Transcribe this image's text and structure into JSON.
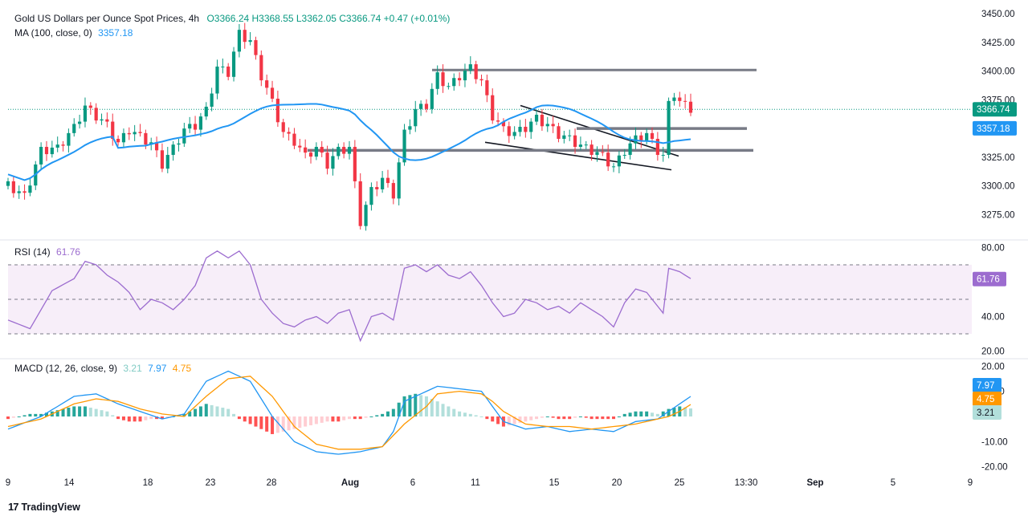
{
  "header": {
    "symbol": "Gold US Dollars per Ounce Spot Prices, 4h",
    "ohlc": "O3366.24  H3368.55  L3362.05  C3366.74  +0.47 (+0.01%)",
    "ma_label": "MA (100, close, 0)",
    "ma_value": "3357.18"
  },
  "rsi_header": {
    "label": "RSI (14)",
    "value": "61.76"
  },
  "macd_header": {
    "label": "MACD (12, 26, close, 9)",
    "hist": "3.21",
    "macd": "7.97",
    "signal": "4.75"
  },
  "footer": {
    "brand": "TradingView"
  },
  "colors": {
    "up": "#089981",
    "down": "#f23645",
    "ma": "#2196f3",
    "rsi": "#9c6ccf",
    "macd_line": "#2196f3",
    "signal_line": "#ff9800",
    "hist_up_strong": "#26a69a",
    "hist_up_weak": "#b2dfdb",
    "hist_down_strong": "#ff5252",
    "hist_down_weak": "#ffcdd2"
  },
  "chart_data": [
    {
      "type": "candlestick",
      "title": "Gold US Dollars per Ounce Spot Prices, 4h",
      "x_tick_labels": [
        "9",
        "14",
        "18",
        "23",
        "28",
        "Aug",
        "6",
        "11",
        "15",
        "20",
        "25",
        "13:30",
        "Sep",
        "5",
        "9"
      ],
      "ylim": [
        3255,
        3455
      ],
      "y_ticks": [
        "3450.00",
        "3425.00",
        "3400.00",
        "3375.00",
        "3350.00",
        "3325.00",
        "3300.00",
        "3275.00"
      ],
      "last_price": "3366.74",
      "ma_last": "3357.18",
      "close_path": [
        [
          0,
          3300
        ],
        [
          3,
          3290
        ],
        [
          6,
          3330
        ],
        [
          9,
          3332
        ],
        [
          12,
          3350
        ],
        [
          14,
          3368
        ],
        [
          16,
          3360
        ],
        [
          18,
          3352
        ],
        [
          20,
          3336
        ],
        [
          22,
          3348
        ],
        [
          24,
          3342
        ],
        [
          26,
          3336
        ],
        [
          28,
          3318
        ],
        [
          30,
          3332
        ],
        [
          32,
          3348
        ],
        [
          34,
          3352
        ],
        [
          36,
          3365
        ],
        [
          38,
          3402
        ],
        [
          40,
          3398
        ],
        [
          42,
          3432
        ],
        [
          44,
          3425
        ],
        [
          46,
          3395
        ],
        [
          48,
          3372
        ],
        [
          50,
          3345
        ],
        [
          52,
          3338
        ],
        [
          54,
          3325
        ],
        [
          56,
          3332
        ],
        [
          58,
          3318
        ],
        [
          60,
          3330
        ],
        [
          62,
          3332
        ],
        [
          64,
          3268
        ],
        [
          66,
          3295
        ],
        [
          68,
          3305
        ],
        [
          70,
          3292
        ],
        [
          72,
          3345
        ],
        [
          74,
          3365
        ],
        [
          76,
          3370
        ],
        [
          78,
          3395
        ],
        [
          80,
          3385
        ],
        [
          82,
          3395
        ],
        [
          84,
          3402
        ],
        [
          86,
          3390
        ],
        [
          88,
          3360
        ],
        [
          90,
          3348
        ],
        [
          92,
          3345
        ],
        [
          94,
          3350
        ],
        [
          96,
          3358
        ],
        [
          98,
          3352
        ],
        [
          100,
          3344
        ],
        [
          102,
          3340
        ],
        [
          104,
          3334
        ],
        [
          106,
          3330
        ],
        [
          108,
          3325
        ],
        [
          110,
          3315
        ],
        [
          112,
          3330
        ],
        [
          114,
          3340
        ],
        [
          116,
          3344
        ],
        [
          118,
          3330
        ],
        [
          119,
          3325
        ],
        [
          120,
          3370
        ],
        [
          121,
          3380
        ],
        [
          122,
          3372
        ],
        [
          124,
          3366.74
        ]
      ],
      "trendlines": [
        {
          "label": "resistance",
          "x": [
            110,
            187
          ],
          "y": [
            3401,
            3401
          ]
        },
        {
          "label": "wedge-top",
          "x": [
            134,
            172
          ],
          "y": [
            3370,
            3326
          ]
        },
        {
          "label": "wedge-bottom",
          "x": [
            126,
            172
          ],
          "y": [
            3338,
            3314
          ]
        },
        {
          "label": "level-3350",
          "x": [
            150,
            189
          ],
          "y": [
            3350,
            3350
          ]
        },
        {
          "label": "level-3330",
          "x": [
            80,
            190
          ],
          "y": [
            3331,
            3331
          ]
        }
      ]
    },
    {
      "type": "line",
      "title": "RSI (14)",
      "ylim": [
        17,
        83
      ],
      "y_ticks": [
        "80.00",
        "60.00",
        "40.00",
        "20.00"
      ],
      "band": [
        30,
        70
      ],
      "midline": 50,
      "last": "61.76",
      "values_path": [
        [
          0,
          38
        ],
        [
          4,
          33
        ],
        [
          8,
          55
        ],
        [
          12,
          62
        ],
        [
          14,
          72
        ],
        [
          16,
          70
        ],
        [
          18,
          64
        ],
        [
          20,
          60
        ],
        [
          22,
          54
        ],
        [
          24,
          44
        ],
        [
          26,
          50
        ],
        [
          28,
          48
        ],
        [
          30,
          44
        ],
        [
          32,
          50
        ],
        [
          34,
          58
        ],
        [
          36,
          74
        ],
        [
          38,
          78
        ],
        [
          40,
          74
        ],
        [
          42,
          78
        ],
        [
          44,
          70
        ],
        [
          46,
          50
        ],
        [
          48,
          42
        ],
        [
          50,
          36
        ],
        [
          52,
          34
        ],
        [
          54,
          38
        ],
        [
          56,
          40
        ],
        [
          58,
          36
        ],
        [
          60,
          42
        ],
        [
          62,
          44
        ],
        [
          64,
          26
        ],
        [
          66,
          40
        ],
        [
          68,
          42
        ],
        [
          70,
          38
        ],
        [
          72,
          68
        ],
        [
          74,
          70
        ],
        [
          76,
          66
        ],
        [
          78,
          70
        ],
        [
          80,
          64
        ],
        [
          82,
          62
        ],
        [
          84,
          66
        ],
        [
          86,
          58
        ],
        [
          88,
          48
        ],
        [
          90,
          40
        ],
        [
          92,
          42
        ],
        [
          94,
          50
        ],
        [
          96,
          48
        ],
        [
          98,
          44
        ],
        [
          100,
          46
        ],
        [
          102,
          42
        ],
        [
          104,
          48
        ],
        [
          106,
          44
        ],
        [
          108,
          40
        ],
        [
          110,
          34
        ],
        [
          112,
          48
        ],
        [
          114,
          56
        ],
        [
          116,
          54
        ],
        [
          118,
          46
        ],
        [
          119,
          42
        ],
        [
          120,
          68
        ],
        [
          122,
          66
        ],
        [
          124,
          62
        ]
      ]
    },
    {
      "type": "bar",
      "title": "MACD (12, 26, close, 9)",
      "ylim": [
        -22,
        22
      ],
      "y_ticks": [
        "20.00",
        "10.00",
        "0.00",
        "-10.00",
        "-20.00"
      ],
      "macd_last": "7.97",
      "signal_last": "4.75",
      "hist_last": "3.21",
      "macd_path": [
        [
          0,
          -5
        ],
        [
          6,
          0
        ],
        [
          12,
          8
        ],
        [
          16,
          9
        ],
        [
          20,
          5
        ],
        [
          24,
          2
        ],
        [
          28,
          -1
        ],
        [
          32,
          1
        ],
        [
          36,
          14
        ],
        [
          40,
          18
        ],
        [
          44,
          14
        ],
        [
          48,
          0
        ],
        [
          52,
          -10
        ],
        [
          56,
          -14
        ],
        [
          60,
          -15
        ],
        [
          64,
          -14
        ],
        [
          68,
          -12
        ],
        [
          70,
          -6
        ],
        [
          72,
          6
        ],
        [
          76,
          10
        ],
        [
          78,
          12
        ],
        [
          82,
          11
        ],
        [
          86,
          10
        ],
        [
          88,
          4
        ],
        [
          90,
          -2
        ],
        [
          94,
          -5
        ],
        [
          98,
          -4
        ],
        [
          102,
          -6
        ],
        [
          106,
          -5
        ],
        [
          110,
          -6
        ],
        [
          114,
          -2
        ],
        [
          118,
          -1
        ],
        [
          120,
          2
        ],
        [
          122,
          5
        ],
        [
          124,
          7.97
        ]
      ],
      "signal_path": [
        [
          0,
          -4
        ],
        [
          6,
          -1
        ],
        [
          12,
          5
        ],
        [
          16,
          7
        ],
        [
          20,
          6
        ],
        [
          24,
          3
        ],
        [
          28,
          1
        ],
        [
          32,
          0
        ],
        [
          36,
          8
        ],
        [
          40,
          15
        ],
        [
          44,
          16
        ],
        [
          48,
          8
        ],
        [
          52,
          -4
        ],
        [
          56,
          -11
        ],
        [
          60,
          -13
        ],
        [
          64,
          -13
        ],
        [
          68,
          -12
        ],
        [
          72,
          -3
        ],
        [
          76,
          4
        ],
        [
          78,
          9
        ],
        [
          82,
          10
        ],
        [
          86,
          9
        ],
        [
          88,
          6
        ],
        [
          90,
          2
        ],
        [
          94,
          -3
        ],
        [
          98,
          -4
        ],
        [
          102,
          -4
        ],
        [
          106,
          -5
        ],
        [
          110,
          -4
        ],
        [
          114,
          -3
        ],
        [
          118,
          -1
        ],
        [
          120,
          0
        ],
        [
          122,
          2
        ],
        [
          124,
          4.75
        ]
      ],
      "hist_values": [
        [
          0,
          -1
        ],
        [
          2,
          0
        ],
        [
          4,
          1
        ],
        [
          6,
          1
        ],
        [
          8,
          2
        ],
        [
          10,
          3
        ],
        [
          12,
          4
        ],
        [
          14,
          4
        ],
        [
          16,
          3
        ],
        [
          18,
          2
        ],
        [
          20,
          -1
        ],
        [
          22,
          -2
        ],
        [
          24,
          -2
        ],
        [
          26,
          -1
        ],
        [
          28,
          -1
        ],
        [
          30,
          0
        ],
        [
          32,
          1
        ],
        [
          34,
          3
        ],
        [
          36,
          5
        ],
        [
          38,
          4
        ],
        [
          40,
          3
        ],
        [
          42,
          -1
        ],
        [
          44,
          -3
        ],
        [
          46,
          -5
        ],
        [
          48,
          -7
        ],
        [
          50,
          -6
        ],
        [
          52,
          -5
        ],
        [
          54,
          -4
        ],
        [
          56,
          -3
        ],
        [
          58,
          -2
        ],
        [
          60,
          -2
        ],
        [
          62,
          -1
        ],
        [
          64,
          -1
        ],
        [
          66,
          0
        ],
        [
          68,
          1
        ],
        [
          70,
          3
        ],
        [
          72,
          8
        ],
        [
          74,
          9
        ],
        [
          76,
          8
        ],
        [
          78,
          6
        ],
        [
          80,
          4
        ],
        [
          82,
          2
        ],
        [
          84,
          1
        ],
        [
          86,
          0
        ],
        [
          88,
          -2
        ],
        [
          90,
          -4
        ],
        [
          92,
          -3
        ],
        [
          94,
          -2
        ],
        [
          96,
          -1
        ],
        [
          98,
          0
        ],
        [
          100,
          -1
        ],
        [
          102,
          -1
        ],
        [
          104,
          0
        ],
        [
          106,
          -1
        ],
        [
          108,
          -1
        ],
        [
          110,
          -1
        ],
        [
          112,
          1
        ],
        [
          114,
          2
        ],
        [
          116,
          2
        ],
        [
          118,
          1
        ],
        [
          120,
          3
        ],
        [
          122,
          4
        ],
        [
          124,
          3.21
        ]
      ]
    }
  ]
}
